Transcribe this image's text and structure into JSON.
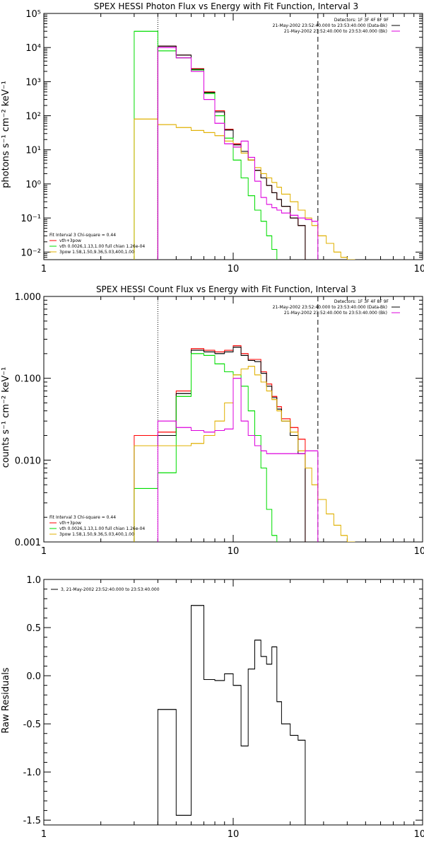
{
  "chart_data": [
    {
      "type": "line",
      "title": "SPEX HESSI Photon Flux vs Energy with Fit Function, Interval 3",
      "ylabel": "photons s⁻¹ cm⁻² keV⁻¹",
      "xscale": "log",
      "yscale": "log",
      "xlim": [
        1,
        100
      ],
      "ylim": [
        0.006,
        100000
      ],
      "xticks": [
        "1",
        "10",
        "100"
      ],
      "yticks": [
        "10⁻²",
        "10⁻¹",
        "10⁰",
        "10¹",
        "10²",
        "10³",
        "10⁴",
        "10⁵"
      ],
      "ytick_values": [
        0.01,
        0.1,
        1,
        10,
        100,
        1000,
        10000,
        100000
      ],
      "edges": [
        3.0,
        4.0,
        5.0,
        6.0,
        7.0,
        8.0,
        9.0,
        10.0,
        11.0,
        12.0,
        13.0,
        14.0,
        15.0,
        16.0,
        17.0,
        18.0,
        20.0,
        22.0,
        24.0,
        26.0,
        28.0,
        31.0,
        34.0,
        37.0,
        40.0,
        44.0
      ],
      "series": [
        {
          "name": "vth+3pow",
          "color": "#ff0000",
          "values": [
            null,
            11000,
            6000,
            2400,
            500,
            140,
            40,
            15,
            9,
            5,
            2.5,
            1.5,
            0.9,
            0.55,
            0.35,
            0.22,
            0.1,
            0.06
          ]
        },
        {
          "name": "Data",
          "color": "#000000",
          "values": [
            null,
            11000,
            6000,
            2300,
            480,
            130,
            38,
            14,
            9,
            5,
            2.5,
            1.5,
            0.9,
            0.55,
            0.35,
            0.22,
            0.1,
            0.06
          ]
        },
        {
          "name": "vth 0.0026,1.13,1.00  full chian 1.26e-04",
          "color": "#00dd00",
          "values": [
            30000,
            8000,
            5000,
            2200,
            450,
            100,
            22,
            5,
            1.5,
            0.45,
            0.17,
            0.08,
            0.03,
            0.012
          ]
        },
        {
          "name": "3pow 1.58,1.50,9.36,5.03,400,1.00",
          "color": "#e0b000",
          "values": [
            80,
            55,
            45,
            37,
            32,
            26,
            18,
            12,
            8,
            5,
            3,
            2,
            1.5,
            1.1,
            0.8,
            0.5,
            0.3,
            0.17,
            0.1,
            0.06,
            0.03,
            0.018,
            0.01,
            0.007,
            0.005
          ]
        },
        {
          "name": "Background",
          "color": "#dd00dd",
          "values": [
            null,
            10000,
            5000,
            2000,
            300,
            60,
            15,
            12,
            18,
            6,
            1.2,
            0.4,
            0.25,
            0.2,
            0.17,
            0.14,
            0.12,
            0.1,
            0.09,
            0.08
          ]
        }
      ],
      "vlines": [
        {
          "x": 4.0,
          "style": "dotted"
        },
        {
          "x": 28.0,
          "style": "dashed"
        }
      ],
      "legend": {
        "top_right": [
          "Detectors: 1F 3F 4F 8F 9F",
          "21-May-2002 23:52:40.000 to 23:53:40.000 (Data-Bk)",
          "21-May-2002 23:52:40.000 to 23:53:40.000 (Bk)"
        ],
        "bottom_left": [
          "Fit Interval 3    Chi-square = 0.44",
          "vth+3pow",
          "vth 0.0026,1.13,1.00  full chian 1.26e-04",
          "3pow 1.58,1.50,9.36,5.03,400,1.00"
        ]
      }
    },
    {
      "type": "line",
      "title": "SPEX HESSI Count Flux vs Energy with Fit Function, Interval 3",
      "ylabel": "counts s⁻¹ cm⁻² keV⁻¹",
      "xscale": "log",
      "yscale": "log",
      "xlim": [
        1,
        100
      ],
      "ylim": [
        0.001,
        1.0
      ],
      "xticks": [
        "1",
        "10",
        "100"
      ],
      "yticks": [
        "0.001",
        "0.010",
        "0.100",
        "1.000"
      ],
      "ytick_values": [
        0.001,
        0.01,
        0.1,
        1.0
      ],
      "edges": [
        3.0,
        4.0,
        5.0,
        6.0,
        7.0,
        8.0,
        9.0,
        10.0,
        11.0,
        12.0,
        13.0,
        14.0,
        15.0,
        16.0,
        17.0,
        18.0,
        20.0,
        22.0,
        24.0,
        26.0,
        28.0,
        31.0,
        34.0,
        37.0,
        40.0,
        44.0
      ],
      "series": [
        {
          "name": "vth+3pow",
          "color": "#ff0000",
          "values": [
            0.02,
            0.022,
            0.07,
            0.23,
            0.22,
            0.21,
            0.22,
            0.25,
            0.2,
            0.17,
            0.17,
            0.12,
            0.085,
            0.06,
            0.045,
            0.032,
            0.025,
            0.018
          ]
        },
        {
          "name": "Data",
          "color": "#000000",
          "values": [
            0.015,
            0.02,
            0.065,
            0.22,
            0.21,
            0.2,
            0.21,
            0.24,
            0.19,
            0.165,
            0.16,
            0.115,
            0.08,
            0.058,
            0.042,
            0.03,
            0.02,
            0.012
          ]
        },
        {
          "name": "vth 0.0026,1.13,1.00  full chian 1.26e-04",
          "color": "#00dd00",
          "values": [
            0.0045,
            0.007,
            0.06,
            0.2,
            0.19,
            0.15,
            0.12,
            0.11,
            0.08,
            0.04,
            0.02,
            0.008,
            0.0025,
            0.0012
          ]
        },
        {
          "name": "3pow 1.58,1.50,9.36,5.03,400,1.00",
          "color": "#e0b000",
          "values": [
            0.015,
            0.015,
            0.015,
            0.016,
            0.02,
            0.03,
            0.05,
            0.11,
            0.13,
            0.14,
            0.11,
            0.09,
            0.07,
            0.055,
            0.04,
            0.03,
            0.022,
            0.013,
            0.008,
            0.005,
            0.0033,
            0.0022,
            0.0016,
            0.0012,
            0.0009
          ]
        },
        {
          "name": "Background",
          "color": "#dd00dd",
          "values": [
            null,
            0.03,
            0.025,
            0.023,
            0.022,
            0.023,
            0.024,
            0.1,
            0.03,
            0.02,
            0.015,
            0.013,
            0.012,
            0.012,
            0.012,
            0.012,
            0.012,
            0.012,
            0.013,
            0.013
          ]
        }
      ],
      "vlines": [
        {
          "x": 4.0,
          "style": "dotted"
        },
        {
          "x": 28.0,
          "style": "dashed"
        }
      ],
      "legend": {
        "top_right": [
          "Detectors: 1F 3F 4F 8F 9F",
          "21-May-2002 23:52:40.000 to 23:53:40.000 (Data-Bk)",
          "21-May-2002 23:52:40.000 to 23:53:40.000 (Bk)"
        ],
        "bottom_left": [
          "Fit Interval 3    Chi-square = 0.44",
          "vth+3pow",
          "vth 0.0026,1.13,1.00  full chian 1.26e-04",
          "3pow 1.58,1.50,9.36,5.03,400,1.00"
        ]
      }
    },
    {
      "type": "line",
      "title": "",
      "ylabel": "Raw Residuals",
      "xscale": "log",
      "yscale": "linear",
      "xlim": [
        1,
        100
      ],
      "ylim": [
        -1.55,
        1.0
      ],
      "xticks": [
        "1",
        "10",
        "100"
      ],
      "yticks": [
        "-1.5",
        "-1.0",
        "-0.5",
        "0.0",
        "0.5",
        "1.0"
      ],
      "ytick_values": [
        -1.5,
        -1.0,
        -0.5,
        0.0,
        0.5,
        1.0
      ],
      "edges": [
        4.0,
        5.0,
        6.0,
        7.0,
        8.0,
        9.0,
        10.0,
        11.0,
        12.0,
        13.0,
        14.0,
        15.0,
        16.0,
        17.0,
        18.0,
        20.0,
        22.0,
        24.0,
        26.0,
        28.0
      ],
      "series": [
        {
          "name": "3, 21-May-2002 23:52:40.000 to 23:53:40.000",
          "color": "#000000",
          "values": [
            -0.35,
            -1.45,
            0.73,
            -0.04,
            -0.05,
            0.02,
            -0.1,
            -0.73,
            0.07,
            0.37,
            0.2,
            0.12,
            0.3,
            -0.27,
            -0.5,
            -0.62,
            -0.67,
            -1.55,
            -1.55
          ]
        }
      ],
      "legend": {
        "top_left": [
          "3, 21-May-2002 23:52:40.000 to 23:53:40.000"
        ]
      }
    }
  ]
}
